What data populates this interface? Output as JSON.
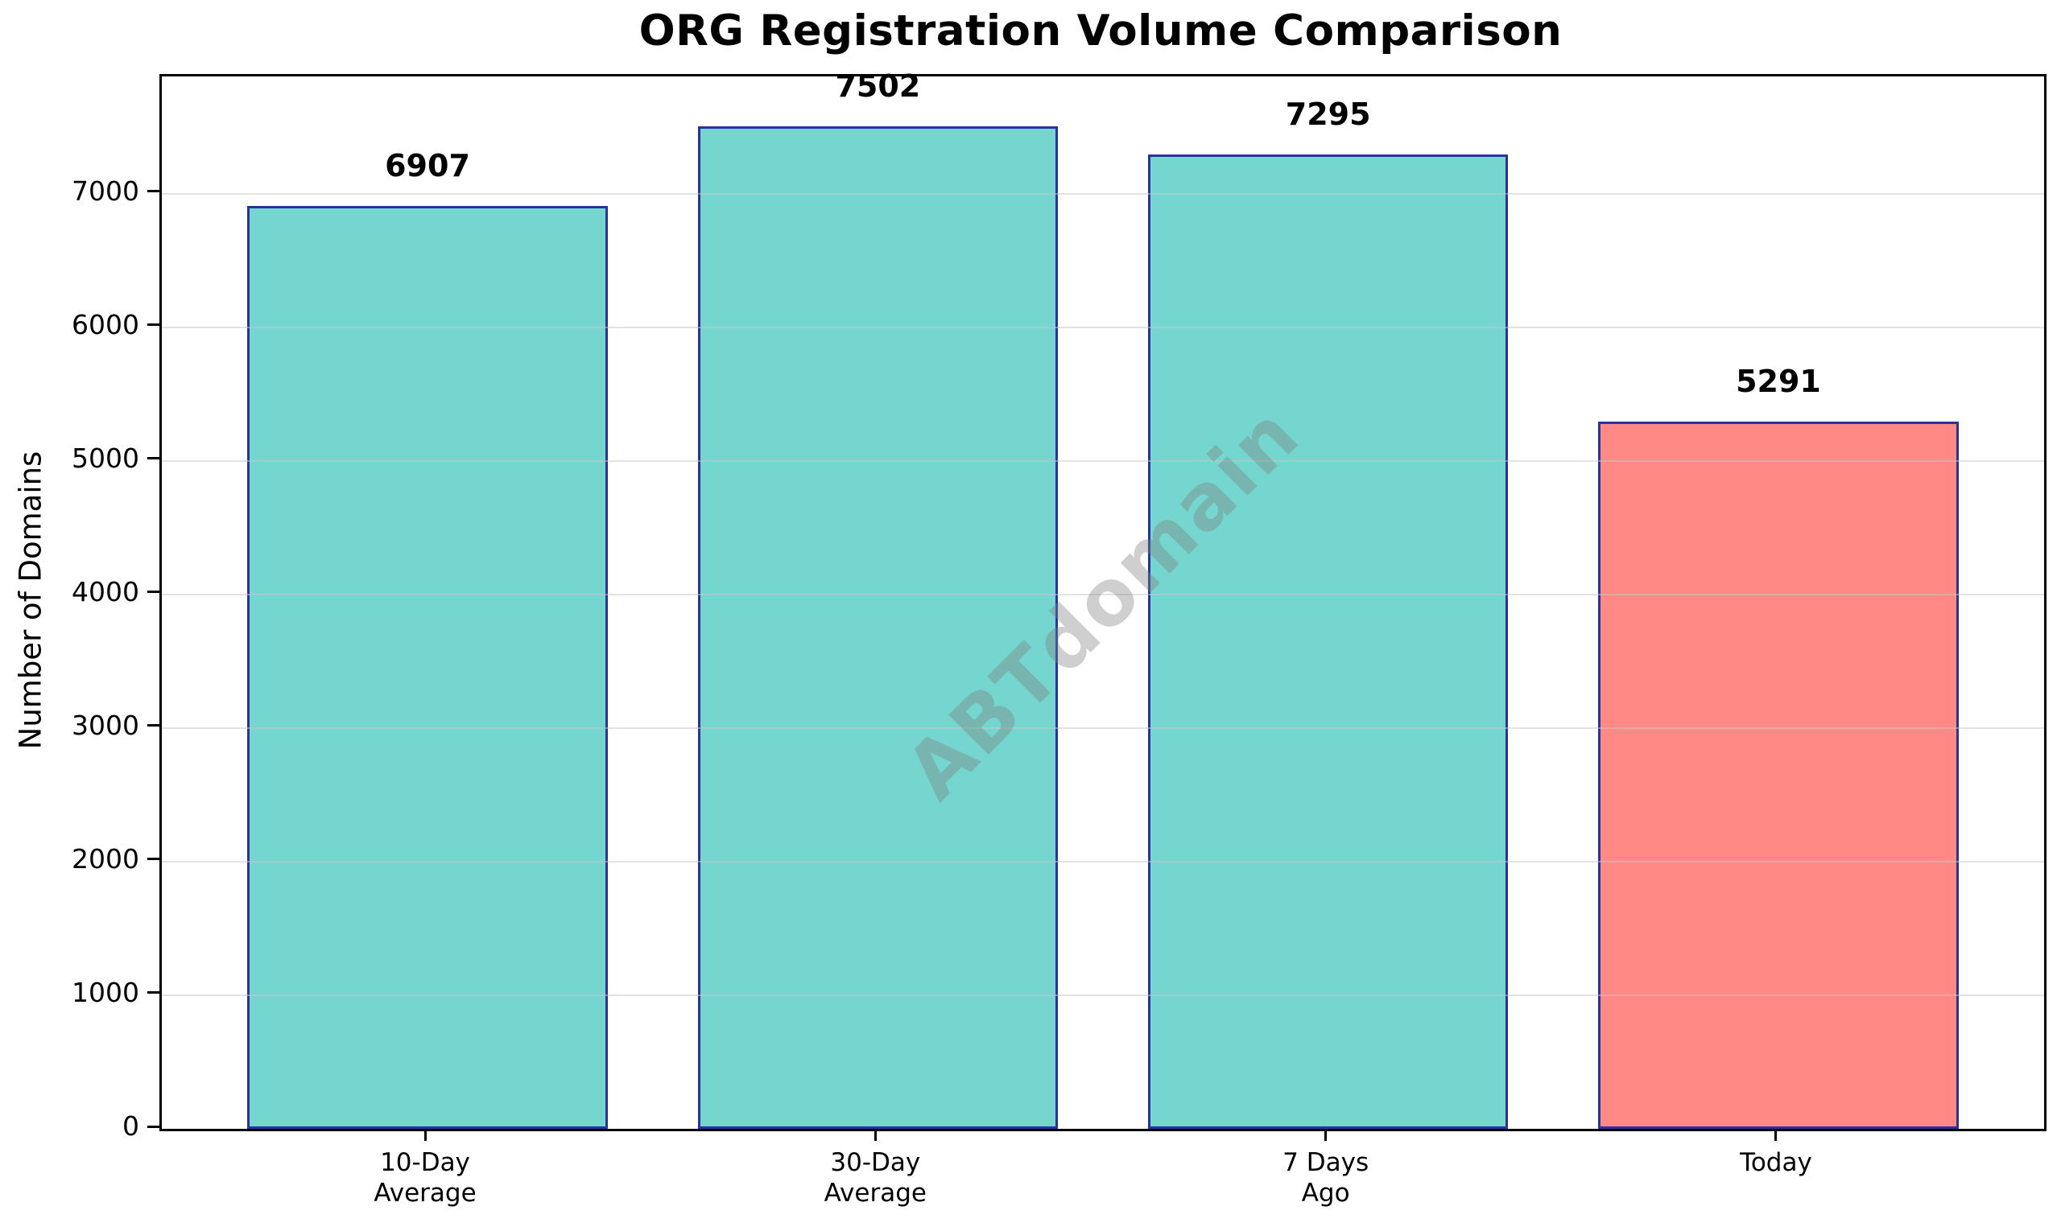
{
  "title": "ORG Registration Volume Comparison",
  "watermark": "ABTdomain",
  "axes": {
    "ylabel": "Number of Domains",
    "xlabel": ""
  },
  "chart_data": {
    "type": "bar",
    "title": "ORG Registration Volume Comparison",
    "categories": [
      "10-Day\nAverage",
      "30-Day\nAverage",
      "7 Days\nAgo",
      "Today"
    ],
    "values": [
      6907,
      7502,
      7295,
      5291
    ],
    "value_labels": [
      "6907",
      "7502",
      "7295",
      "5291"
    ],
    "xlabel": "",
    "ylabel": "Number of Domains",
    "ylim": [
      0,
      7877
    ],
    "yticks": [
      0,
      1000,
      2000,
      3000,
      4000,
      5000,
      6000,
      7000
    ],
    "ytick_labels": [
      "0",
      "1000",
      "2000",
      "3000",
      "4000",
      "5000",
      "6000",
      "7000"
    ],
    "grid": true,
    "grid_over_bars": true,
    "legend": "none",
    "watermark": "ABTdomain",
    "colors": {
      "bar_fill": [
        "#74d6ce",
        "#74d6ce",
        "#74d6ce",
        "#ff8a85"
      ],
      "bar_edge": "#27349c",
      "gridline": "rgba(200,200,200,0.5)",
      "watermark": "rgba(128,128,128,0.38)",
      "text": "#000000",
      "background": "#ffffff"
    }
  }
}
